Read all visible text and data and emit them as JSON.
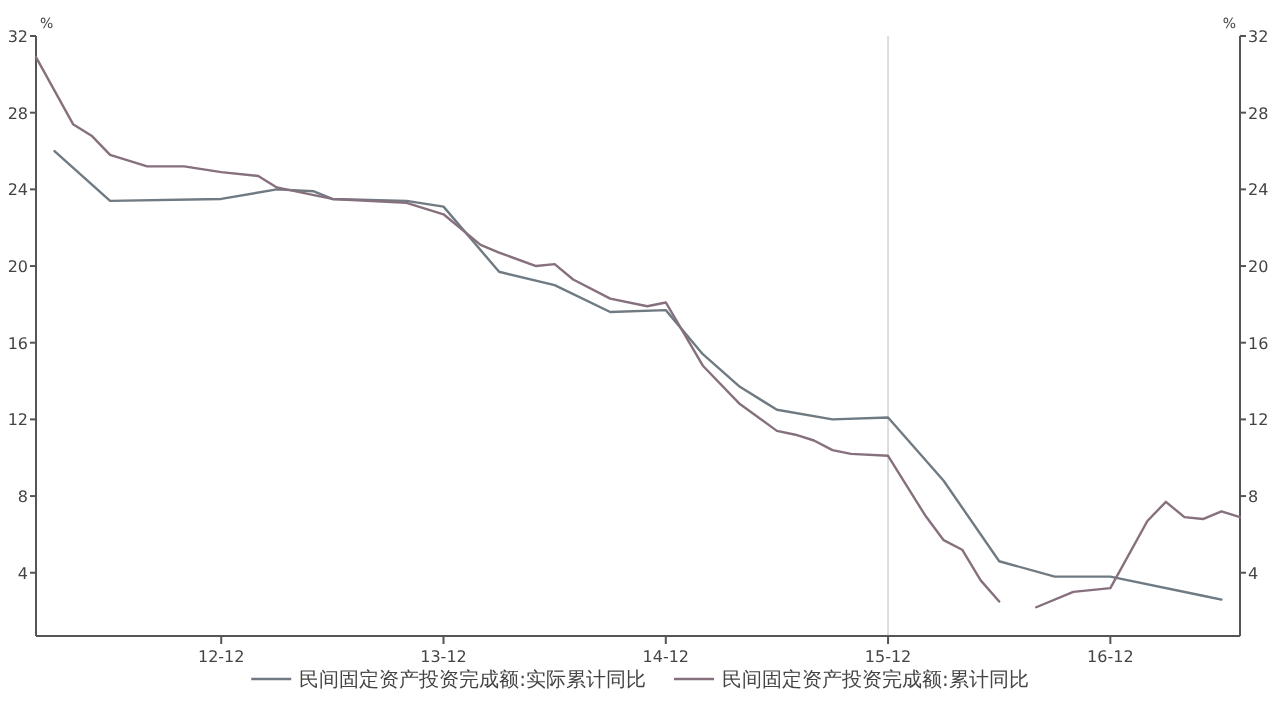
{
  "chart_data": {
    "type": "line",
    "ylabel": "%",
    "y2label": "%",
    "xlim": [
      "2012-02",
      "2017-07"
    ],
    "xticks": [
      {
        "value": "2012-12",
        "label": "12-12"
      },
      {
        "value": "2013-12",
        "label": "13-12"
      },
      {
        "value": "2014-12",
        "label": "14-12"
      },
      {
        "value": "2015-12",
        "label": "15-12"
      },
      {
        "value": "2016-12",
        "label": "16-12"
      }
    ],
    "ylim": [
      0.7,
      32
    ],
    "yticks": [
      4,
      8,
      12,
      16,
      20,
      24,
      28,
      32
    ],
    "y2lim": [
      0.7,
      32
    ],
    "y2ticks": [
      4,
      8,
      12,
      16,
      20,
      24,
      28,
      32
    ],
    "ref_lines": [
      {
        "axis": "x",
        "value": "2015-12",
        "color": "#dddddd"
      }
    ],
    "legend": "bottom",
    "series": [
      {
        "name": "民间固定资产投资完成额:实际累计同比",
        "color": "#6f7a82",
        "x": [
          "2012-03",
          "2012-06",
          "2012-12",
          "2013-03",
          "2013-05",
          "2013-06",
          "2013-10",
          "2013-12",
          "2014-03",
          "2014-06",
          "2014-09",
          "2014-12",
          "2015-02",
          "2015-04",
          "2015-06",
          "2015-09",
          "2015-12",
          "2016-03",
          "2016-06",
          "2016-09",
          "2016-12",
          "2017-05",
          "2017-06"
        ],
        "values": [
          26.0,
          23.4,
          23.5,
          24.0,
          23.9,
          23.5,
          23.4,
          23.1,
          19.7,
          19.0,
          17.6,
          17.7,
          15.4,
          13.7,
          12.5,
          12.0,
          12.1,
          8.8,
          4.6,
          3.8,
          3.8,
          2.8,
          2.6
        ]
      },
      {
        "name": "民间固定资产投资完成额:累计同比",
        "color": "#86707e",
        "x": [
          "2012-02",
          "2012-04",
          "2012-05",
          "2012-06",
          "2012-08",
          "2012-10",
          "2012-12",
          "2013-02",
          "2013-03",
          "2013-05",
          "2013-06",
          "2013-10",
          "2013-12",
          "2014-02",
          "2014-03",
          "2014-05",
          "2014-06",
          "2014-07",
          "2014-09",
          "2014-11",
          "2014-12",
          "2015-02",
          "2015-04",
          "2015-06",
          "2015-07",
          "2015-08",
          "2015-09",
          "2015-10",
          "2015-12",
          "2016-02",
          "2016-03",
          "2016-04",
          "2016-05",
          "2016-06",
          "2016-07",
          "2016-08",
          "2016-10",
          "2016-12",
          "2017-02",
          "2017-03",
          "2017-04",
          "2017-05",
          "2017-06",
          "2017-07"
        ],
        "values": [
          30.9,
          27.4,
          26.8,
          25.8,
          25.2,
          25.2,
          24.9,
          24.7,
          24.1,
          23.7,
          23.5,
          23.3,
          22.7,
          21.1,
          20.7,
          20.0,
          20.1,
          19.3,
          18.3,
          17.9,
          18.1,
          14.8,
          12.8,
          11.4,
          11.2,
          10.9,
          10.4,
          10.2,
          10.1,
          7.0,
          5.7,
          5.2,
          3.6,
          2.5,
          null,
          2.2,
          3.0,
          3.2,
          6.7,
          7.7,
          6.9,
          6.8,
          7.2,
          6.9
        ]
      }
    ]
  }
}
